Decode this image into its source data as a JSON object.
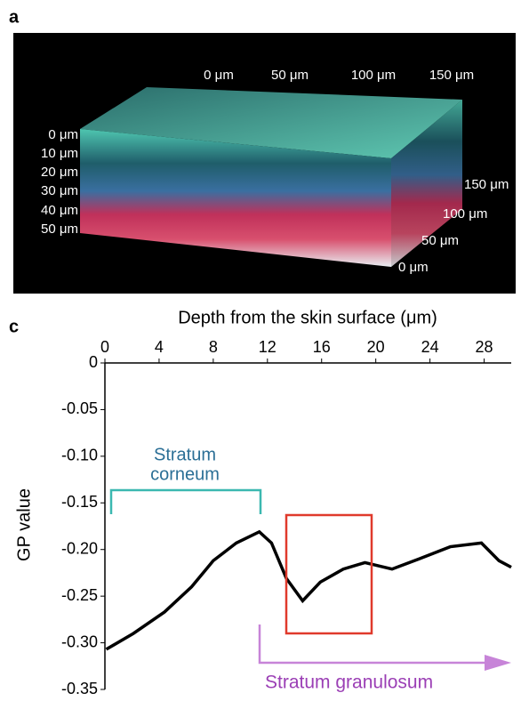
{
  "panel_a": {
    "letter": "a",
    "top_labels": [
      "0 μm",
      "50 μm",
      "100 μm",
      "150 μm"
    ],
    "left_labels": [
      "0 μm",
      "10 μm",
      "20 μm",
      "30 μm",
      "40 μm",
      "50 μm"
    ],
    "right_labels": [
      "150 μm",
      "100 μm",
      "50 μm",
      "0 μm"
    ]
  },
  "chart_data": {
    "type": "line",
    "letter": "c",
    "xlabel": "Depth from the skin surface (μm)",
    "ylabel": "GP value",
    "xlim": [
      0,
      30
    ],
    "xticks": [
      0,
      4,
      8,
      12,
      16,
      20,
      24,
      28
    ],
    "ylim": [
      -0.35,
      0
    ],
    "yticks": [
      {
        "value": 0,
        "label": "0"
      },
      -0.05,
      {
        "value": -0.1,
        "label": "-0.10"
      },
      -0.15,
      {
        "value": -0.2,
        "label": "-0.20"
      },
      -0.25,
      {
        "value": -0.3,
        "label": "-0.30"
      },
      -0.35
    ],
    "series": [
      {
        "color": "#000000",
        "x": [
          0.1,
          2.1,
          4.4,
          6.4,
          8.0,
          9.7,
          11.4,
          12.3,
          13.4,
          14.6,
          15.9,
          17.6,
          19.2,
          21.2,
          23.2,
          25.5,
          27.8,
          29.1,
          30.0
        ],
        "values": [
          -0.307,
          -0.29,
          -0.267,
          -0.24,
          -0.212,
          -0.193,
          -0.181,
          -0.193,
          -0.231,
          -0.255,
          -0.235,
          -0.221,
          -0.214,
          -0.221,
          -0.21,
          -0.197,
          -0.193,
          -0.212,
          -0.219
        ]
      }
    ],
    "annotations": {
      "corneum": [
        "Stratum",
        "corneum"
      ],
      "granulosum": "Stratum granulosum"
    }
  }
}
